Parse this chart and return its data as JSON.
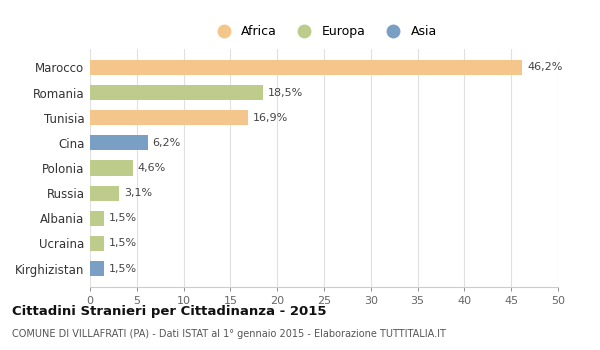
{
  "categories": [
    "Marocco",
    "Romania",
    "Tunisia",
    "Cina",
    "Polonia",
    "Russia",
    "Albania",
    "Ucraina",
    "Kirghizistan"
  ],
  "values": [
    46.2,
    18.5,
    16.9,
    6.2,
    4.6,
    3.1,
    1.5,
    1.5,
    1.5
  ],
  "labels": [
    "46,2%",
    "18,5%",
    "16,9%",
    "6,2%",
    "4,6%",
    "3,1%",
    "1,5%",
    "1,5%",
    "1,5%"
  ],
  "colors": [
    "#F5C68C",
    "#BDCC8A",
    "#F5C68C",
    "#7A9FC4",
    "#BDCC8A",
    "#BDCC8A",
    "#BDCC8A",
    "#BDCC8A",
    "#7A9FC4"
  ],
  "legend_labels": [
    "Africa",
    "Europa",
    "Asia"
  ],
  "legend_colors": [
    "#F5C68C",
    "#BDCC8A",
    "#7A9FC4"
  ],
  "title": "Cittadini Stranieri per Cittadinanza - 2015",
  "subtitle": "COMUNE DI VILLAFRATI (PA) - Dati ISTAT al 1° gennaio 2015 - Elaborazione TUTTITALIA.IT",
  "xlim": [
    0,
    50
  ],
  "xticks": [
    0,
    5,
    10,
    15,
    20,
    25,
    30,
    35,
    40,
    45,
    50
  ],
  "background_color": "#ffffff",
  "grid_color": "#e0e0e0"
}
